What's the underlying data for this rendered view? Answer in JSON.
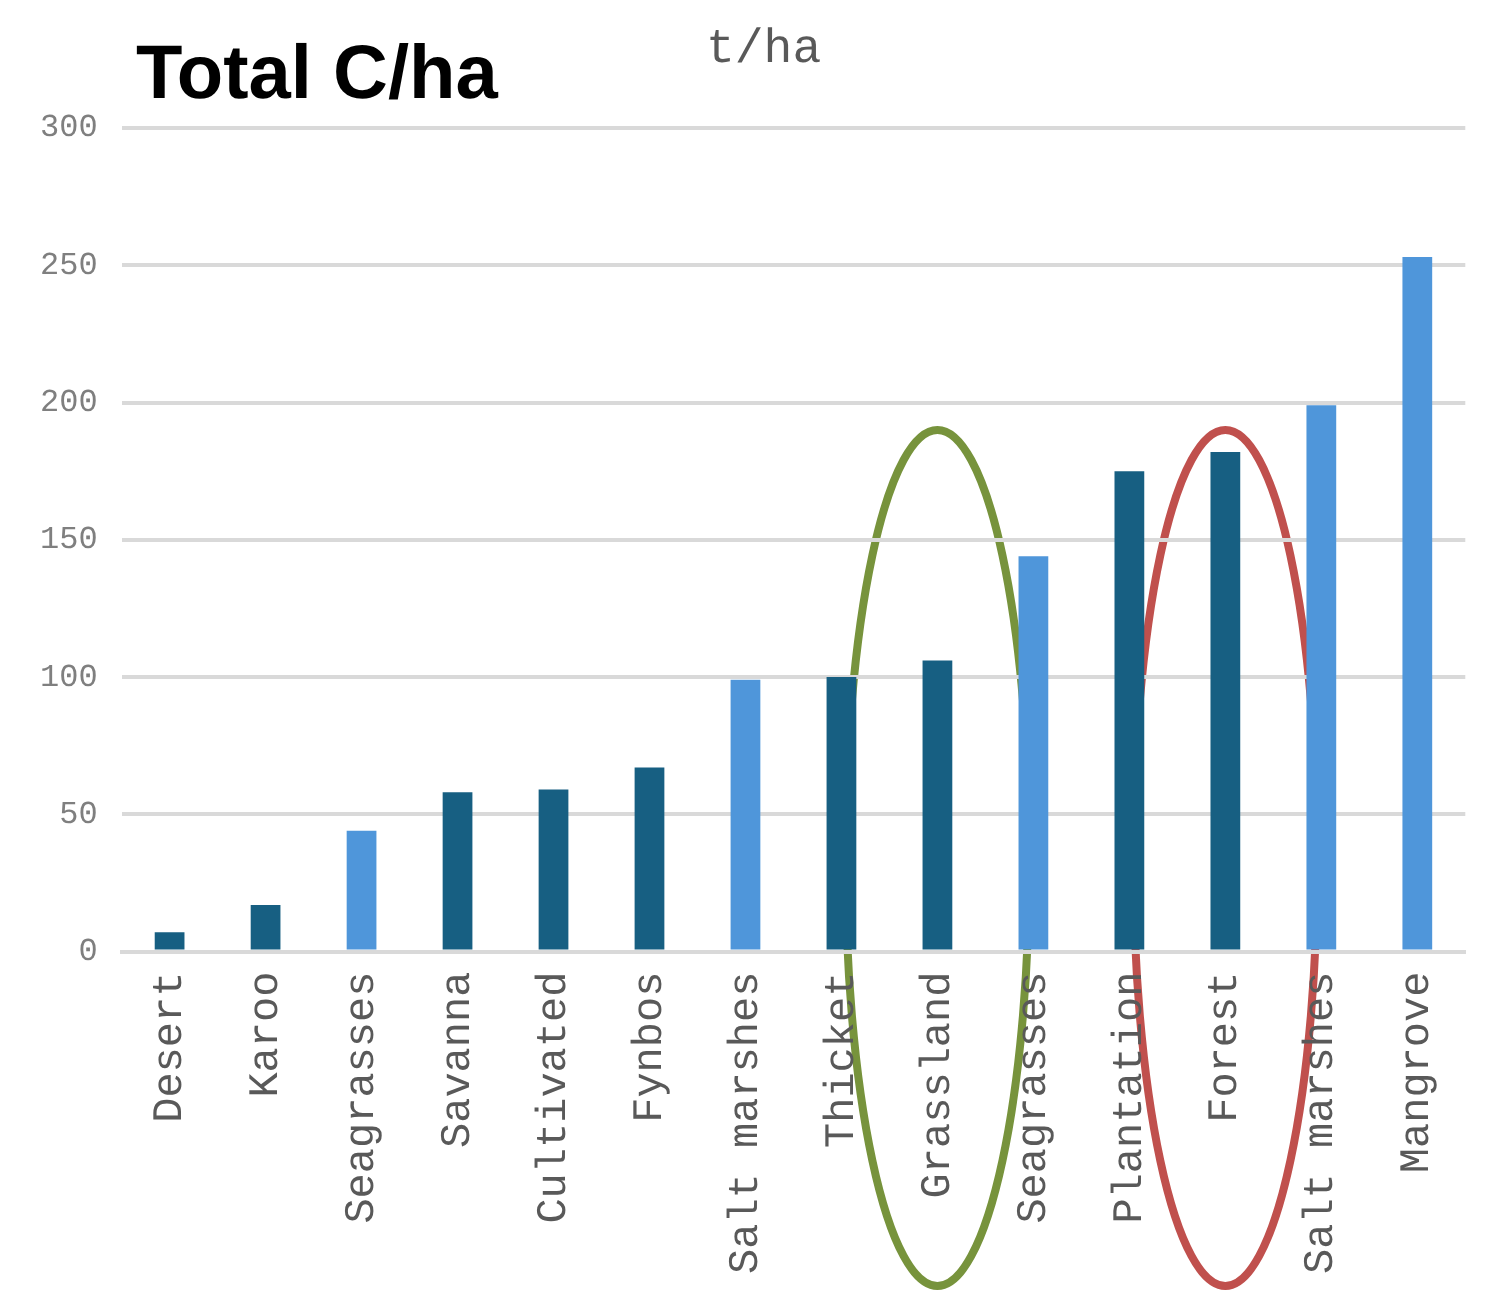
{
  "chart_data": {
    "type": "bar",
    "title": "Total C/ha",
    "subtitle": "t/ha",
    "categories": [
      "Desert",
      "Karoo",
      "Seagrasses",
      "Savanna",
      "Cultivated",
      "Fynbos",
      "Salt marshes",
      "Thicket",
      "Grassland",
      "Seagrasses",
      "Plantation",
      "Forest",
      "Salt marshes",
      "Mangrove"
    ],
    "values": [
      7,
      17,
      44,
      58,
      59,
      67,
      99,
      100,
      106,
      144,
      175,
      182,
      199,
      253
    ],
    "colors": [
      "#175f82",
      "#175f82",
      "#4f96da",
      "#175f82",
      "#175f82",
      "#175f82",
      "#4f96da",
      "#175f82",
      "#175f82",
      "#4f96da",
      "#175f82",
      "#175f82",
      "#4f96da",
      "#4f96da"
    ],
    "ylim": [
      0,
      300
    ],
    "yticks": [
      0,
      50,
      100,
      150,
      200,
      250,
      300
    ],
    "grid": "y",
    "legend": false
  }
}
